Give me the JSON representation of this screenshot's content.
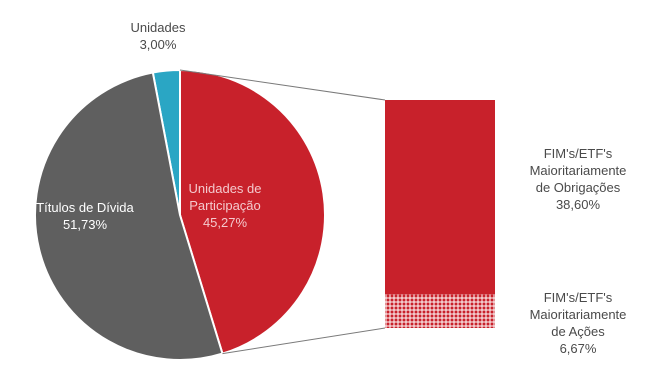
{
  "chart_data": {
    "type": "pie",
    "title": "",
    "slices": [
      {
        "label_lines": [
          "Unidades",
          "3,00%"
        ],
        "value": 3.0,
        "color": "#2aa6c4"
      },
      {
        "label_lines": [
          "Unidades de",
          "Participação",
          "45,27%"
        ],
        "value": 45.27,
        "color": "#c8212b"
      },
      {
        "label_lines": [
          "Títulos de Dívida",
          "51,73%"
        ],
        "value": 51.73,
        "color": "#5f5f5f"
      }
    ],
    "breakdown": {
      "of_slice": "Unidades de Participação",
      "segments": [
        {
          "label_lines": [
            "FIM's/ETF's",
            "Maioritariamente",
            "de Obrigações",
            "38,60%"
          ],
          "value": 38.6,
          "color": "#c8212b",
          "pattern": "solid"
        },
        {
          "label_lines": [
            "FIM's/ETF's",
            "Maioritariamente",
            "de Ações",
            "6,67%"
          ],
          "value": 6.67,
          "color": "#c8212b",
          "pattern": "grid"
        }
      ]
    }
  }
}
